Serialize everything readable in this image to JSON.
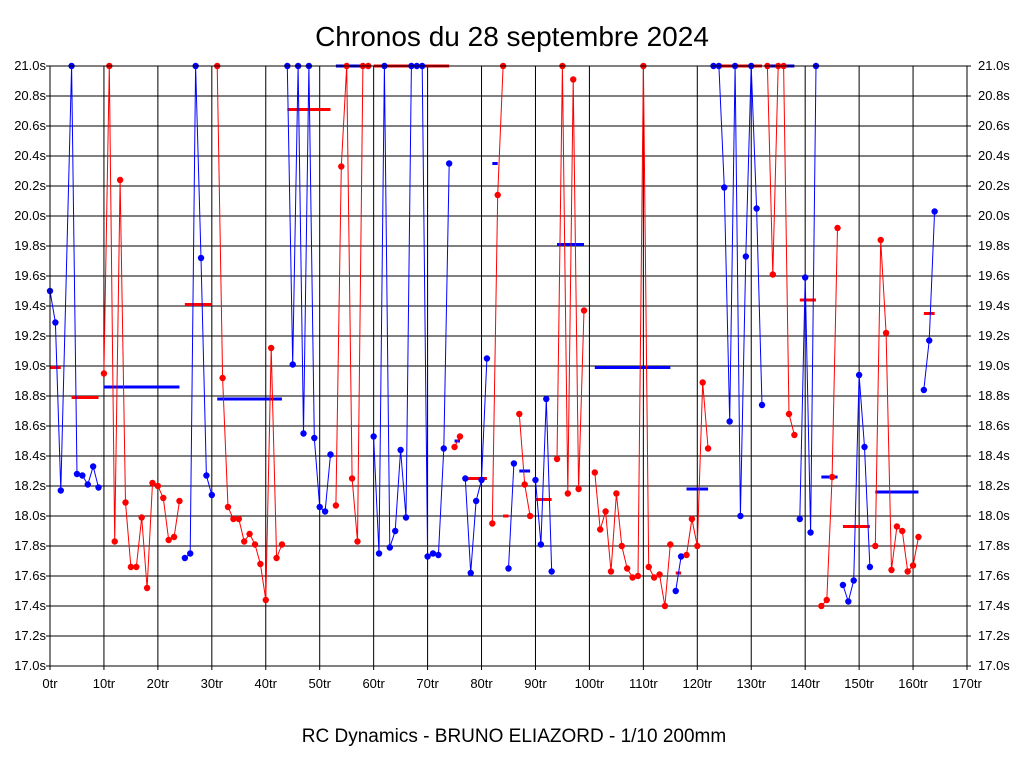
{
  "chart_data": {
    "type": "line",
    "title": "Chronos du 28 septembre 2024",
    "subtitle": "RC Dynamics - BRUNO ELIAZORD - 1/10 200mm",
    "xlabel": "",
    "ylabel": "",
    "xlim": [
      0,
      170
    ],
    "ylim": [
      17.0,
      21.0
    ],
    "grid": true,
    "x_ticks": [
      0,
      10,
      20,
      30,
      40,
      50,
      60,
      70,
      80,
      90,
      100,
      110,
      120,
      130,
      140,
      150,
      160,
      170
    ],
    "x_tick_labels": [
      "0tr",
      "10tr",
      "20tr",
      "30tr",
      "40tr",
      "50tr",
      "60tr",
      "70tr",
      "80tr",
      "90tr",
      "100tr",
      "110tr",
      "120tr",
      "130tr",
      "140tr",
      "150tr",
      "160tr",
      "170tr"
    ],
    "y_ticks": [
      17.0,
      17.2,
      17.4,
      17.6,
      17.8,
      18.0,
      18.2,
      18.4,
      18.6,
      18.8,
      19.0,
      19.2,
      19.4,
      19.6,
      19.8,
      20.0,
      20.2,
      20.4,
      20.6,
      20.8,
      21.0
    ],
    "y_tick_labels": [
      "17.0s",
      "17.2s",
      "17.4s",
      "17.6s",
      "17.8s",
      "18.0s",
      "18.2s",
      "18.4s",
      "18.6s",
      "18.8s",
      "19.0s",
      "19.2s",
      "19.4s",
      "19.6s",
      "19.8s",
      "20.0s",
      "20.2s",
      "20.4s",
      "20.6s",
      "20.8s",
      "21.0s"
    ],
    "series": [
      {
        "color": "#0000ff",
        "points": [
          [
            0,
            19.5
          ],
          [
            1,
            19.29
          ],
          [
            2,
            18.17
          ],
          [
            4,
            21.0
          ],
          [
            5,
            18.28
          ],
          [
            6,
            18.27
          ],
          [
            7,
            18.21
          ],
          [
            8,
            18.33
          ],
          [
            9,
            18.19
          ]
        ]
      },
      {
        "color": "#ff0000",
        "points": [
          [
            10,
            18.95
          ],
          [
            11,
            21.0
          ],
          [
            12,
            17.83
          ],
          [
            13,
            20.24
          ],
          [
            14,
            18.09
          ],
          [
            15,
            17.66
          ],
          [
            16,
            17.66
          ],
          [
            17,
            17.99
          ],
          [
            18,
            17.52
          ],
          [
            19,
            18.22
          ],
          [
            20,
            18.2
          ],
          [
            21,
            18.12
          ],
          [
            22,
            17.84
          ],
          [
            23,
            17.86
          ],
          [
            24,
            18.1
          ]
        ]
      },
      {
        "color": "#0000ff",
        "points": [
          [
            25,
            17.72
          ],
          [
            26,
            17.75
          ],
          [
            27,
            21.0
          ],
          [
            28,
            19.72
          ],
          [
            29,
            18.27
          ],
          [
            30,
            18.14
          ]
        ]
      },
      {
        "color": "#ff0000",
        "points": [
          [
            31,
            21.0
          ],
          [
            32,
            18.92
          ],
          [
            33,
            18.06
          ],
          [
            34,
            17.98
          ],
          [
            35,
            17.98
          ],
          [
            36,
            17.83
          ],
          [
            37,
            17.88
          ],
          [
            38,
            17.81
          ],
          [
            39,
            17.68
          ],
          [
            40,
            17.44
          ],
          [
            41,
            19.12
          ],
          [
            42,
            17.72
          ],
          [
            43,
            17.81
          ]
        ]
      },
      {
        "color": "#0000ff",
        "points": [
          [
            44,
            21.0
          ],
          [
            45,
            19.01
          ],
          [
            46,
            21.0
          ],
          [
            47,
            18.55
          ],
          [
            48,
            21.0
          ],
          [
            49,
            18.52
          ],
          [
            50,
            18.06
          ],
          [
            51,
            18.03
          ],
          [
            52,
            18.41
          ]
        ]
      },
      {
        "color": "#ff0000",
        "points": [
          [
            53,
            18.07
          ],
          [
            54,
            20.33
          ],
          [
            55,
            21.0
          ],
          [
            56,
            18.25
          ],
          [
            57,
            17.83
          ],
          [
            58,
            21.0
          ],
          [
            59,
            21.0
          ]
        ]
      },
      {
        "color": "#0000ff",
        "points": [
          [
            60,
            18.53
          ],
          [
            61,
            17.75
          ],
          [
            62,
            21.0
          ],
          [
            63,
            17.79
          ],
          [
            64,
            17.9
          ],
          [
            65,
            18.44
          ],
          [
            66,
            17.99
          ],
          [
            67,
            21.0
          ],
          [
            68,
            21.0
          ],
          [
            69,
            21.0
          ],
          [
            70,
            17.73
          ],
          [
            71,
            17.75
          ],
          [
            72,
            17.74
          ],
          [
            73,
            18.45
          ],
          [
            74,
            20.35
          ]
        ]
      },
      {
        "color": "#ff0000",
        "points": [
          [
            75,
            18.46
          ],
          [
            76,
            18.53
          ]
        ]
      },
      {
        "color": "#0000ff",
        "points": [
          [
            77,
            18.25
          ],
          [
            78,
            17.62
          ],
          [
            79,
            18.1
          ],
          [
            80,
            18.24
          ],
          [
            81,
            19.05
          ]
        ]
      },
      {
        "color": "#ff0000",
        "points": [
          [
            82,
            17.95
          ],
          [
            83,
            20.14
          ],
          [
            84,
            21.0
          ]
        ]
      },
      {
        "color": "#0000ff",
        "points": [
          [
            85,
            17.65
          ],
          [
            86,
            18.35
          ]
        ]
      },
      {
        "color": "#ff0000",
        "points": [
          [
            87,
            18.68
          ],
          [
            88,
            18.21
          ],
          [
            89,
            18.0
          ]
        ]
      },
      {
        "color": "#0000ff",
        "points": [
          [
            90,
            18.24
          ],
          [
            91,
            17.81
          ],
          [
            92,
            18.78
          ],
          [
            93,
            17.63
          ]
        ]
      },
      {
        "color": "#ff0000",
        "points": [
          [
            94,
            18.38
          ],
          [
            95,
            21.0
          ],
          [
            96,
            18.15
          ],
          [
            97,
            20.91
          ],
          [
            98,
            18.18
          ],
          [
            99,
            19.37
          ]
        ]
      },
      {
        "color": "#ff0000",
        "points": [
          [
            101,
            18.29
          ],
          [
            102,
            17.91
          ],
          [
            103,
            18.03
          ],
          [
            104,
            17.63
          ],
          [
            105,
            18.15
          ],
          [
            106,
            17.8
          ],
          [
            107,
            17.65
          ],
          [
            108,
            17.59
          ],
          [
            109,
            17.6
          ],
          [
            110,
            21.0
          ],
          [
            111,
            17.66
          ],
          [
            112,
            17.59
          ],
          [
            113,
            17.61
          ],
          [
            114,
            17.4
          ],
          [
            115,
            17.81
          ]
        ]
      },
      {
        "color": "#0000ff",
        "points": [
          [
            116,
            17.5
          ],
          [
            117,
            17.73
          ]
        ]
      },
      {
        "color": "#ff0000",
        "points": [
          [
            118,
            17.74
          ],
          [
            119,
            17.98
          ],
          [
            120,
            17.8
          ],
          [
            121,
            18.89
          ],
          [
            122,
            18.45
          ]
        ]
      },
      {
        "color": "#0000ff",
        "points": [
          [
            123,
            21.0
          ],
          [
            124,
            21.0
          ],
          [
            125,
            20.19
          ],
          [
            126,
            18.63
          ],
          [
            127,
            21.0
          ],
          [
            128,
            18.0
          ],
          [
            129,
            19.73
          ],
          [
            130,
            21.0
          ],
          [
            131,
            20.05
          ],
          [
            132,
            18.74
          ]
        ]
      },
      {
        "color": "#ff0000",
        "points": [
          [
            133,
            21.0
          ],
          [
            134,
            19.61
          ],
          [
            135,
            21.0
          ],
          [
            136,
            21.0
          ],
          [
            137,
            18.68
          ],
          [
            138,
            18.54
          ]
        ]
      },
      {
        "color": "#0000ff",
        "points": [
          [
            139,
            17.98
          ],
          [
            140,
            19.59
          ],
          [
            141,
            17.89
          ],
          [
            142,
            21.0
          ]
        ]
      },
      {
        "color": "#ff0000",
        "points": [
          [
            143,
            17.4
          ],
          [
            144,
            17.44
          ],
          [
            145,
            18.26
          ],
          [
            146,
            19.92
          ]
        ]
      },
      {
        "color": "#0000ff",
        "points": [
          [
            147,
            17.54
          ],
          [
            148,
            17.43
          ],
          [
            149,
            17.57
          ],
          [
            150,
            18.94
          ],
          [
            151,
            18.46
          ],
          [
            152,
            17.66
          ]
        ]
      },
      {
        "color": "#ff0000",
        "points": [
          [
            153,
            17.8
          ],
          [
            154,
            19.84
          ],
          [
            155,
            19.22
          ],
          [
            156,
            17.64
          ],
          [
            157,
            17.93
          ],
          [
            158,
            17.9
          ],
          [
            159,
            17.63
          ],
          [
            160,
            17.67
          ],
          [
            161,
            17.86
          ]
        ]
      },
      {
        "color": "#0000ff",
        "points": [
          [
            162,
            18.84
          ],
          [
            163,
            19.17
          ],
          [
            164,
            20.03
          ]
        ]
      }
    ],
    "averages": [
      {
        "color": "#ff0000",
        "x": [
          0,
          2
        ],
        "y": 18.99
      },
      {
        "color": "#ff0000",
        "x": [
          4,
          9
        ],
        "y": 18.79
      },
      {
        "color": "#0000ff",
        "x": [
          10,
          24
        ],
        "y": 18.86
      },
      {
        "color": "#ff0000",
        "x": [
          25,
          30
        ],
        "y": 19.41
      },
      {
        "color": "#0000ff",
        "x": [
          31,
          43
        ],
        "y": 18.78
      },
      {
        "color": "#ff0000",
        "x": [
          44,
          52
        ],
        "y": 20.71
      },
      {
        "color": "#0000ff",
        "x": [
          53,
          59
        ],
        "y": 21.0
      },
      {
        "color": "#ff0000",
        "x": [
          60,
          74
        ],
        "y": 21.0
      },
      {
        "color": "#0000ff",
        "x": [
          75,
          76
        ],
        "y": 18.5
      },
      {
        "color": "#ff0000",
        "x": [
          77,
          81
        ],
        "y": 18.25
      },
      {
        "color": "#0000ff",
        "x": [
          82,
          83
        ],
        "y": 20.35
      },
      {
        "color": "#ff0000",
        "x": [
          84,
          85
        ],
        "y": 18.0
      },
      {
        "color": "#0000ff",
        "x": [
          87,
          89
        ],
        "y": 18.3
      },
      {
        "color": "#ff0000",
        "x": [
          90,
          93
        ],
        "y": 18.11
      },
      {
        "color": "#0000ff",
        "x": [
          94,
          99
        ],
        "y": 19.81
      },
      {
        "color": "#0000ff",
        "x": [
          101,
          115
        ],
        "y": 18.99
      },
      {
        "color": "#ff0000",
        "x": [
          116,
          117
        ],
        "y": 17.62
      },
      {
        "color": "#0000ff",
        "x": [
          118,
          122
        ],
        "y": 18.18
      },
      {
        "color": "#ff0000",
        "x": [
          123,
          132
        ],
        "y": 21.0
      },
      {
        "color": "#0000ff",
        "x": [
          133,
          138
        ],
        "y": 21.0
      },
      {
        "color": "#ff0000",
        "x": [
          139,
          142
        ],
        "y": 19.44
      },
      {
        "color": "#0000ff",
        "x": [
          143,
          146
        ],
        "y": 18.26
      },
      {
        "color": "#ff0000",
        "x": [
          147,
          152
        ],
        "y": 17.93
      },
      {
        "color": "#0000ff",
        "x": [
          153,
          161
        ],
        "y": 18.16
      },
      {
        "color": "#ff0000",
        "x": [
          162,
          164
        ],
        "y": 19.35
      }
    ]
  }
}
